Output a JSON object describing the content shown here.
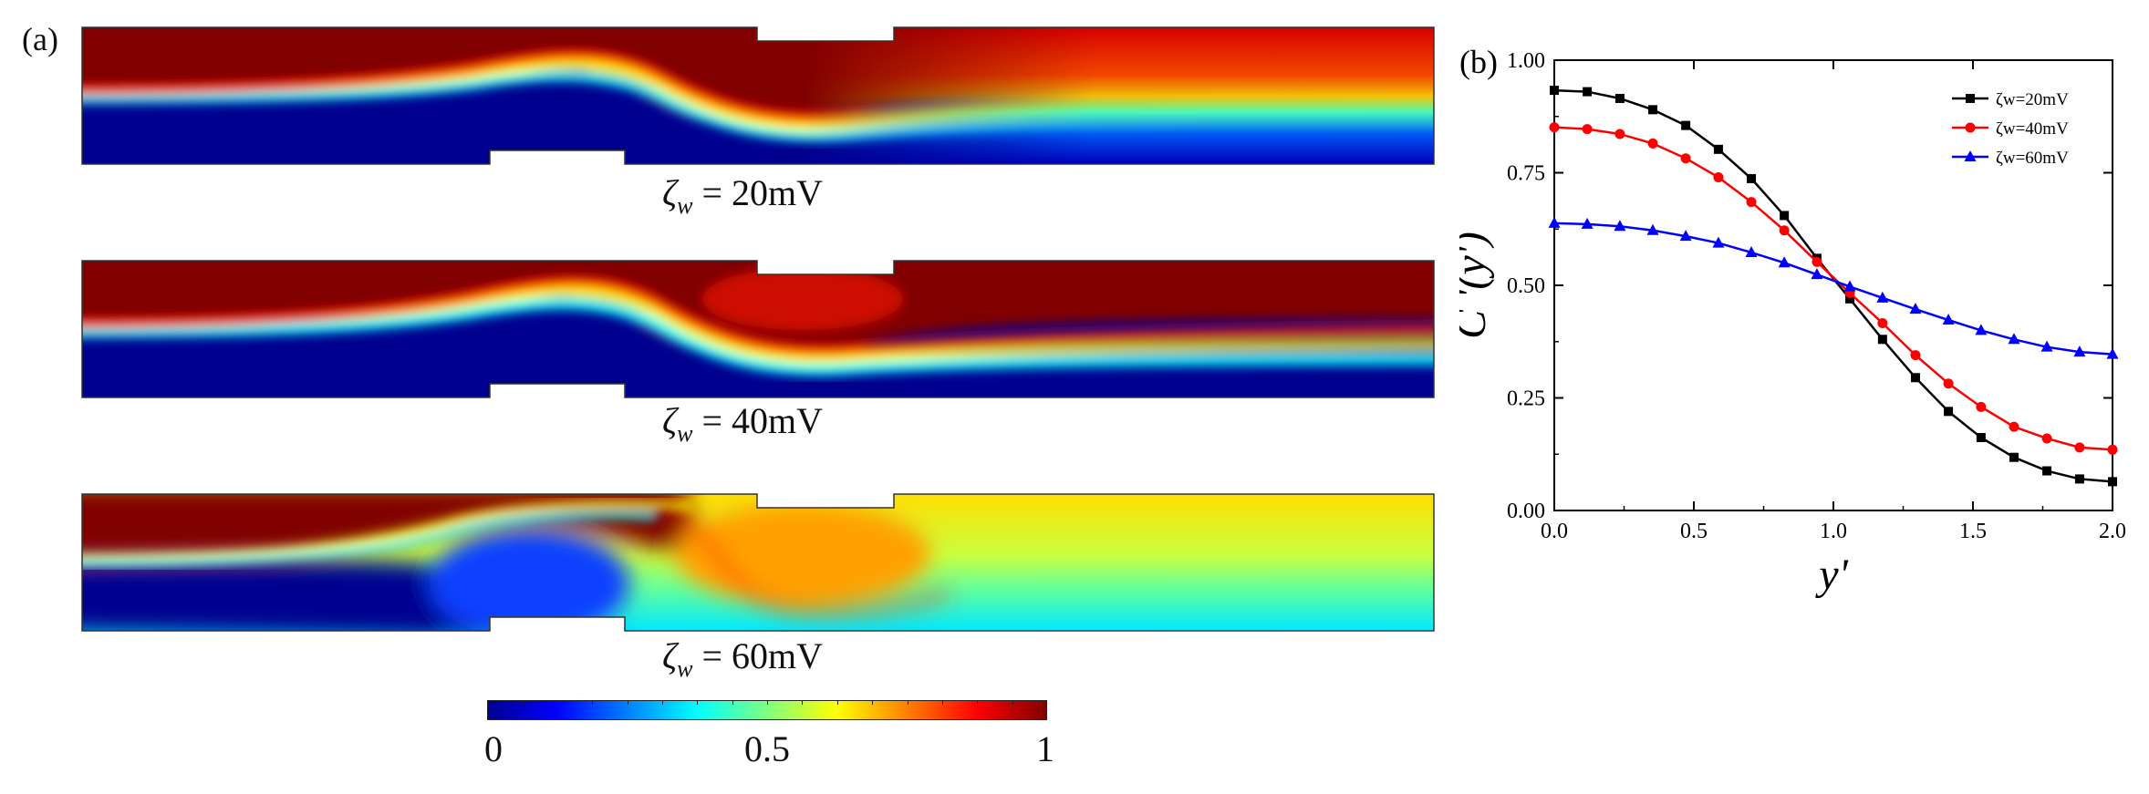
{
  "panel_a": {
    "label": "(a)",
    "panels": [
      {
        "zeta_symbol": "ζ",
        "subscript": "w",
        "equals": " = ",
        "value": "20mV"
      },
      {
        "zeta_symbol": "ζ",
        "subscript": "w",
        "equals": " = ",
        "value": "40mV"
      },
      {
        "zeta_symbol": "ζ",
        "subscript": "w",
        "equals": " = ",
        "value": "60mV"
      }
    ],
    "colorbar": {
      "colormap": "jet",
      "range": [
        0,
        1
      ],
      "labels": [
        "0",
        "0.5",
        "1"
      ],
      "colors": [
        "#00008f",
        "#0000ff",
        "#00ffff",
        "#ffff00",
        "#ff0000",
        "#800000"
      ]
    }
  },
  "chart_data": {
    "type": "line",
    "panel_label": "(b)",
    "xlabel": "y'",
    "ylabel": "C '(y')",
    "xlim": [
      0,
      2.0
    ],
    "ylim": [
      0,
      1.0
    ],
    "xticks": [
      "0.0",
      "0.5",
      "1.0",
      "1.5",
      "2.0"
    ],
    "yticks": [
      "0.00",
      "0.25",
      "0.50",
      "0.75",
      "1.00"
    ],
    "legend_position": "top-right",
    "x": [
      0.0,
      0.118,
      0.235,
      0.353,
      0.471,
      0.588,
      0.706,
      0.824,
      0.941,
      1.059,
      1.176,
      1.294,
      1.412,
      1.529,
      1.647,
      1.765,
      1.882,
      2.0
    ],
    "series": [
      {
        "name": "ζw=20mV",
        "color": "#000000",
        "marker": "square",
        "values": [
          0.933,
          0.93,
          0.915,
          0.89,
          0.855,
          0.802,
          0.737,
          0.655,
          0.56,
          0.47,
          0.38,
          0.295,
          0.22,
          0.162,
          0.118,
          0.088,
          0.07,
          0.064
        ]
      },
      {
        "name": "ζw=40mV",
        "color": "#ff0000",
        "marker": "circle",
        "values": [
          0.851,
          0.847,
          0.836,
          0.815,
          0.782,
          0.74,
          0.685,
          0.622,
          0.552,
          0.483,
          0.416,
          0.345,
          0.282,
          0.23,
          0.186,
          0.16,
          0.14,
          0.135
        ]
      },
      {
        "name": "ζw=60mV",
        "color": "#0000ff",
        "marker": "triangle",
        "values": [
          0.638,
          0.636,
          0.631,
          0.622,
          0.609,
          0.594,
          0.573,
          0.55,
          0.524,
          0.497,
          0.472,
          0.447,
          0.423,
          0.4,
          0.38,
          0.363,
          0.352,
          0.347
        ]
      }
    ]
  }
}
